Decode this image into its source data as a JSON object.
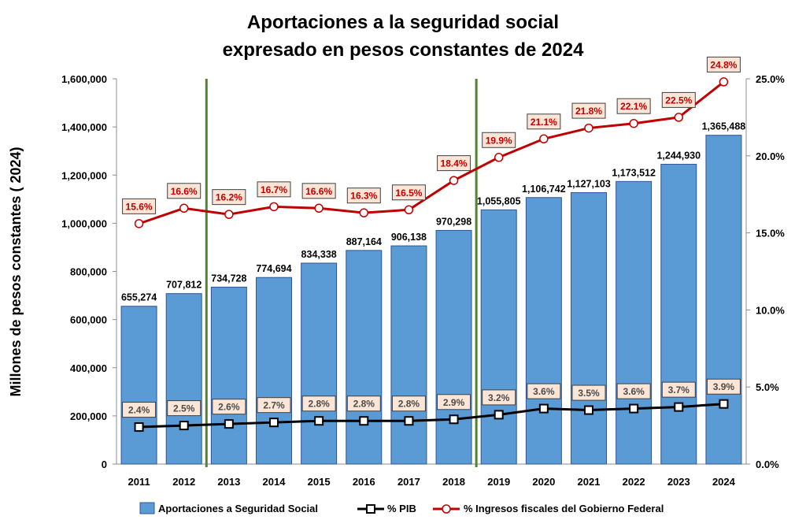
{
  "chart_data": {
    "type": "bar",
    "title": "Aportaciones a la seguridad social",
    "subtitle": "expresado en pesos constantes de 2024",
    "ylabel": "Millones de pesos constantes ( 2024)",
    "xlabel": "",
    "categories": [
      "2011",
      "2012",
      "2013",
      "2014",
      "2015",
      "2016",
      "2017",
      "2018",
      "2019",
      "2020",
      "2021",
      "2022",
      "2023",
      "2024"
    ],
    "ylim": [
      0,
      1600000
    ],
    "y_ticks": [
      "0",
      "200,000",
      "400,000",
      "600,000",
      "800,000",
      "1,000,000",
      "1,200,000",
      "1,400,000",
      "1,600,000"
    ],
    "y2lim": [
      0,
      25
    ],
    "y2_ticks": [
      "0.0%",
      "5.0%",
      "10.0%",
      "15.0%",
      "20.0%",
      "25.0%"
    ],
    "grid": false,
    "legend_position": "bottom",
    "vertical_markers_between": [
      [
        "2012",
        "2013"
      ],
      [
        "2018",
        "2019"
      ]
    ],
    "series": [
      {
        "name": "Aportaciones a Seguridad Social",
        "type": "bar",
        "axis": "left",
        "color": "#5b9bd5",
        "values": [
          655274,
          707812,
          734728,
          774694,
          834338,
          887164,
          906138,
          970298,
          1055805,
          1106742,
          1127103,
          1173512,
          1244930,
          1365488
        ],
        "labels": [
          "655,274",
          "707,812",
          "734,728",
          "774,694",
          "834,338",
          "887,164",
          "906,138",
          "970,298",
          "1,055,805",
          "1,106,742",
          "1,127,103",
          "1,173,512",
          "1,244,930",
          "1,365,488"
        ]
      },
      {
        "name": "% PIB",
        "type": "line",
        "axis": "right",
        "color": "#000000",
        "marker": "square",
        "values": [
          2.4,
          2.5,
          2.6,
          2.7,
          2.8,
          2.8,
          2.8,
          2.9,
          3.2,
          3.6,
          3.5,
          3.6,
          3.7,
          3.9
        ],
        "labels": [
          "2.4%",
          "2.5%",
          "2.6%",
          "2.7%",
          "2.8%",
          "2.8%",
          "2.8%",
          "2.9%",
          "3.2%",
          "3.6%",
          "3.5%",
          "3.6%",
          "3.7%",
          "3.9%"
        ]
      },
      {
        "name": "% Ingresos fiscales del Gobierno Federal",
        "type": "line",
        "axis": "right",
        "color": "#c00000",
        "marker": "circle",
        "values": [
          15.6,
          16.6,
          16.2,
          16.7,
          16.6,
          16.3,
          16.5,
          18.4,
          19.9,
          21.1,
          21.8,
          22.1,
          22.5,
          24.8
        ],
        "labels": [
          "15.6%",
          "16.6%",
          "16.2%",
          "16.7%",
          "16.6%",
          "16.3%",
          "16.5%",
          "18.4%",
          "19.9%",
          "21.1%",
          "21.8%",
          "22.1%",
          "22.5%",
          "24.8%"
        ]
      }
    ]
  },
  "colors": {
    "bar_fill": "#5b9bd5",
    "bar_stroke": "#2f5597",
    "pib_line": "#000000",
    "ingresos_line": "#c00000",
    "label_box_fill": "#fbe5d6",
    "marker_line": "#548235"
  }
}
